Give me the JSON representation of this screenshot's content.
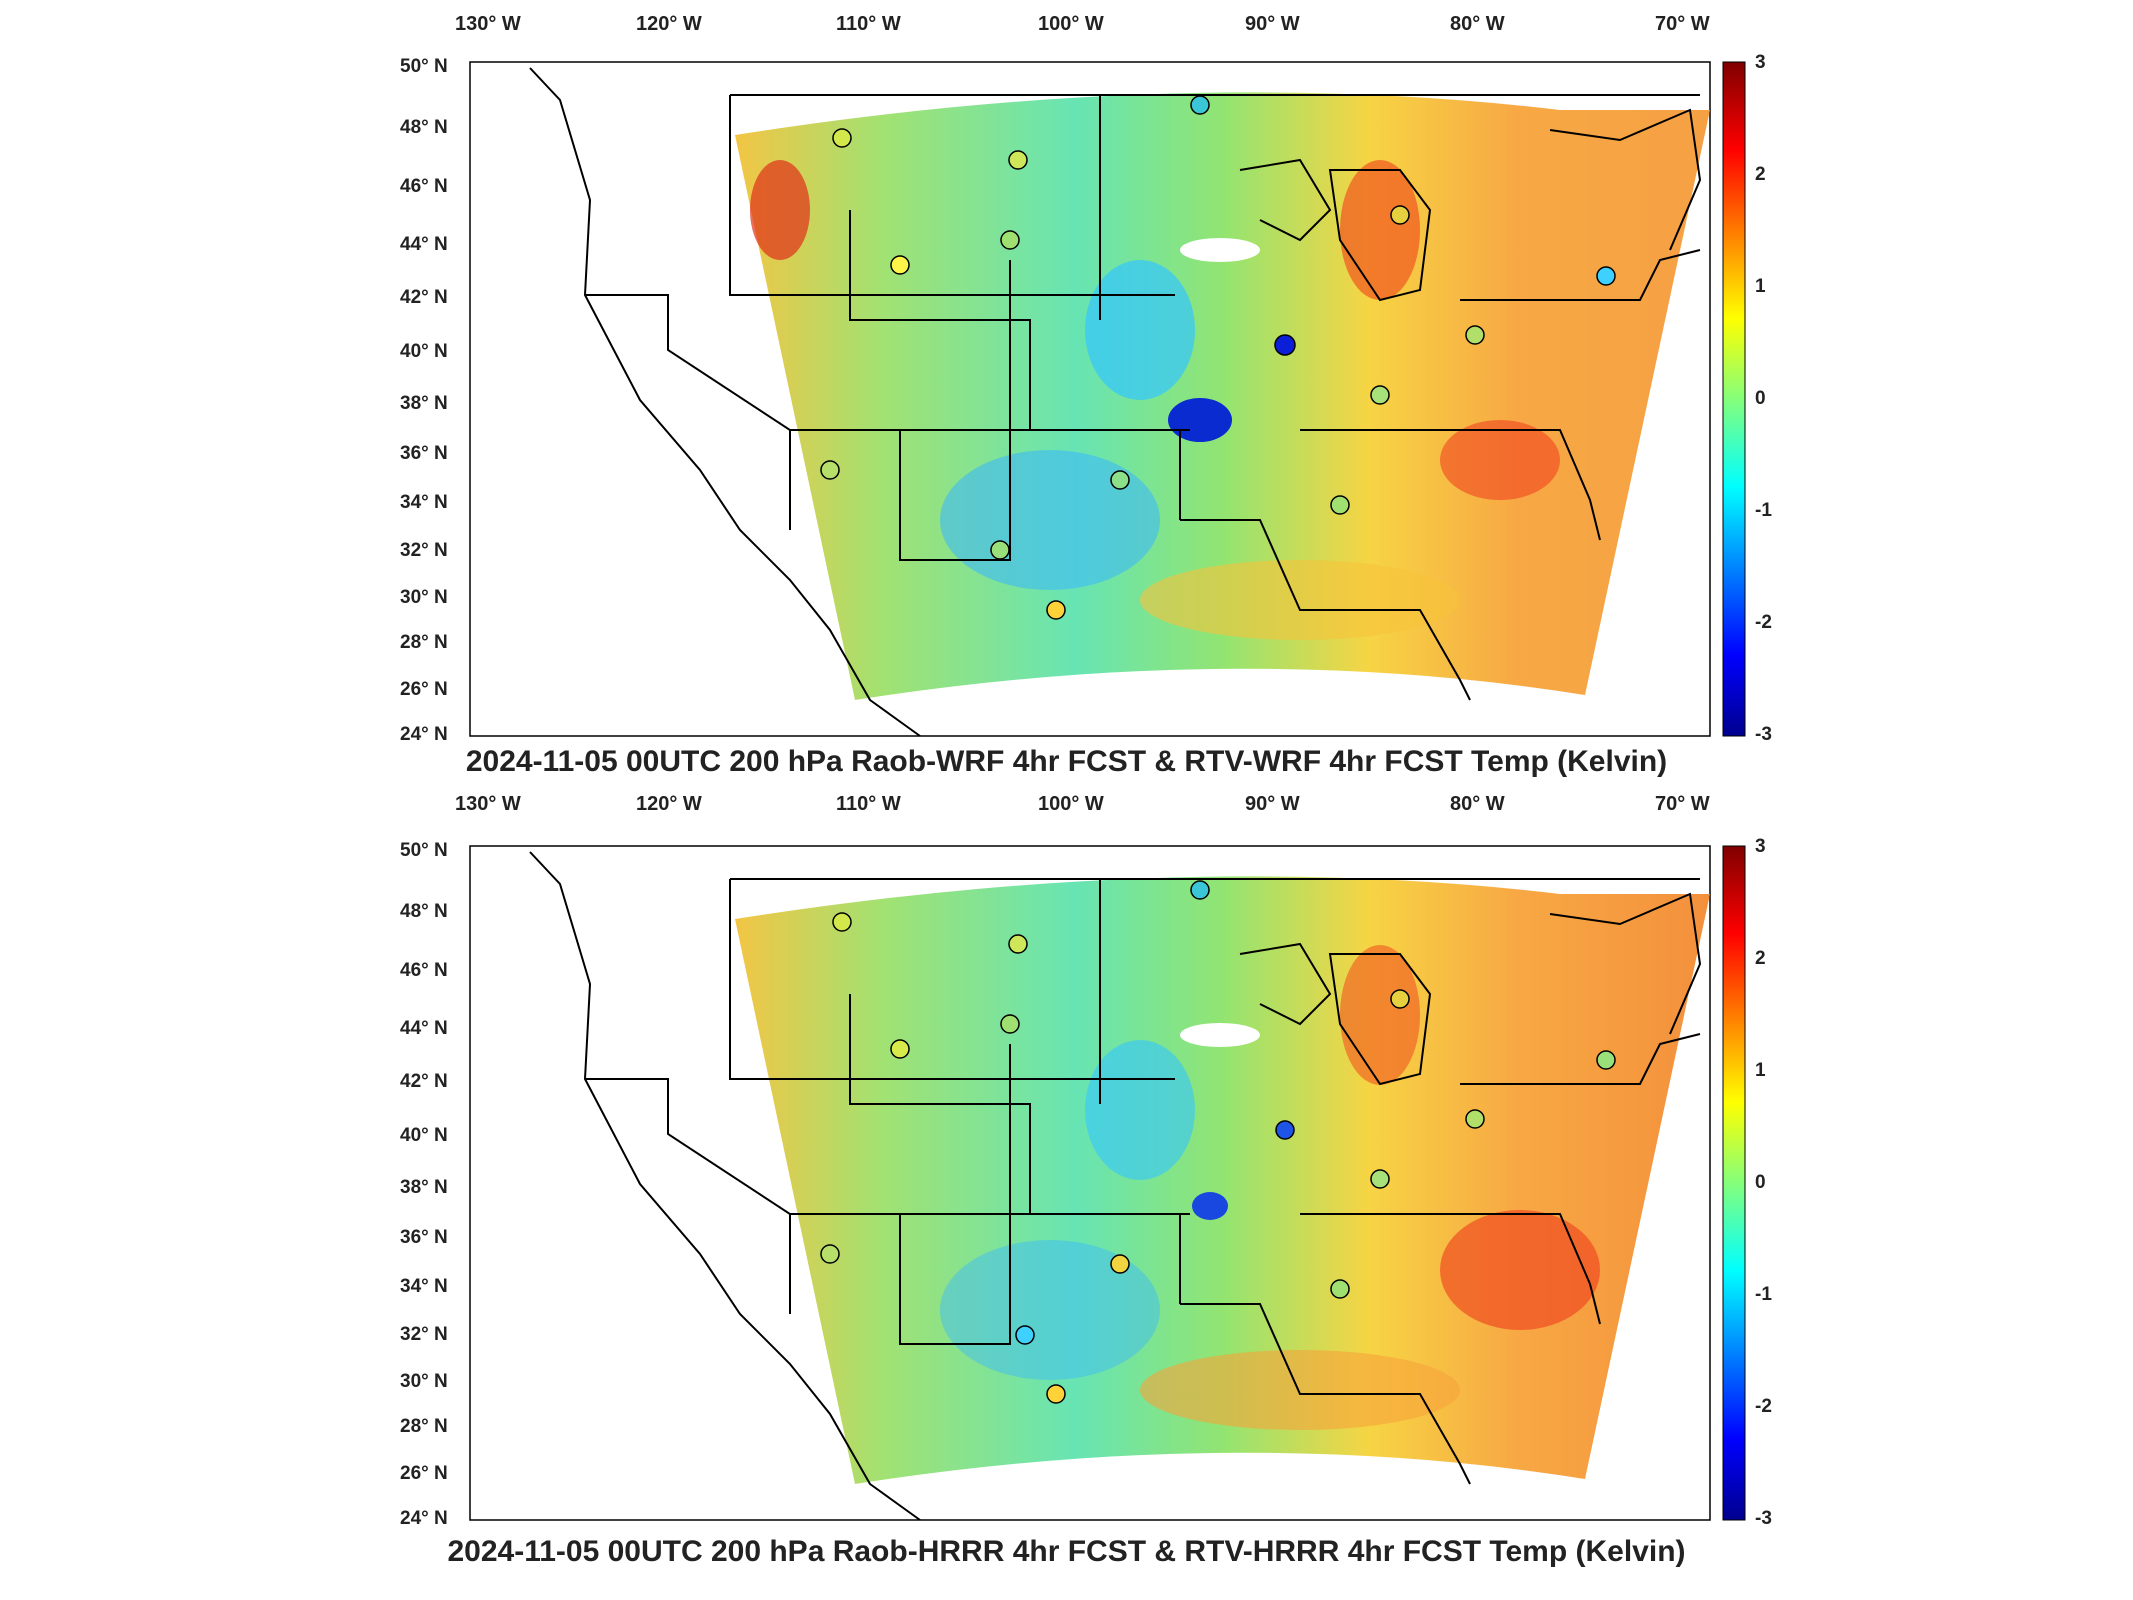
{
  "panels": [
    {
      "title": "2024-11-05 00UTC 200 hPa Raob-WRF 4hr FCST & RTV-WRF 4hr FCST Temp (Kelvin)",
      "lon_ticks": [
        "130° W",
        "120° W",
        "110° W",
        "100° W",
        "90° W",
        "80° W",
        "70° W"
      ],
      "lat_ticks": [
        "50° N",
        "48° N",
        "46° N",
        "44° N",
        "42° N",
        "40° N",
        "38° N",
        "36° N",
        "34° N",
        "32° N",
        "30° N",
        "28° N",
        "26° N",
        "24° N"
      ],
      "colorbar_ticks": [
        "3",
        "2",
        "1",
        "0",
        "-1",
        "-2",
        "-3"
      ]
    },
    {
      "title": "2024-11-05 00UTC 200 hPa Raob-HRRR 4hr FCST & RTV-HRRR 4hr FCST Temp (Kelvin)",
      "lon_ticks": [
        "130° W",
        "120° W",
        "110° W",
        "100° W",
        "90° W",
        "80° W",
        "70° W"
      ],
      "lat_ticks": [
        "50° N",
        "48° N",
        "46° N",
        "44° N",
        "42° N",
        "40° N",
        "38° N",
        "36° N",
        "34° N",
        "32° N",
        "30° N",
        "28° N",
        "26° N",
        "24° N"
      ],
      "colorbar_ticks": [
        "3",
        "2",
        "1",
        "0",
        "-1",
        "-2",
        "-3"
      ]
    }
  ],
  "colors": {
    "scale": [
      "#00008f",
      "#0000ff",
      "#00ffff",
      "#ffff00",
      "#ff0000",
      "#800000"
    ],
    "frame": "#000000",
    "land_border": "#000000"
  },
  "colorbar_range": [
    -3,
    3
  ]
}
